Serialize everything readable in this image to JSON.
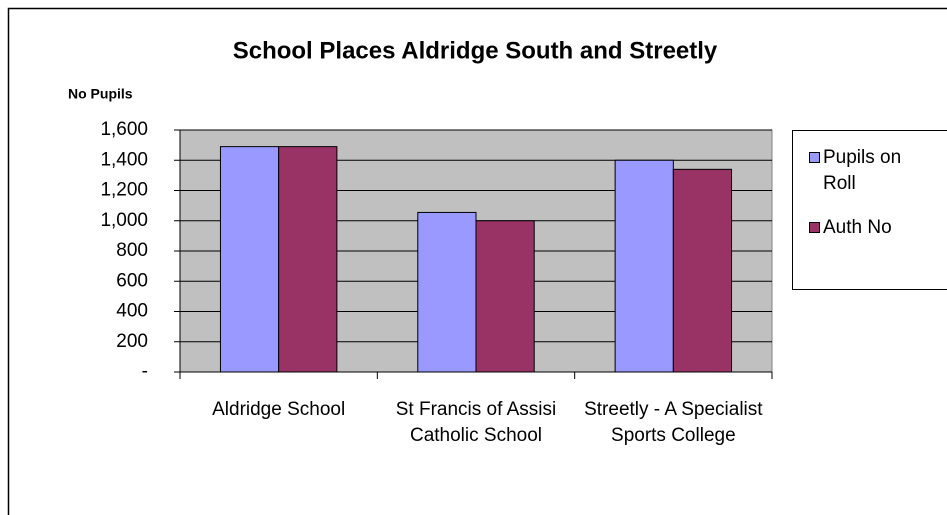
{
  "chart_data": {
    "type": "bar",
    "title": "School Places Aldridge South and Streetly",
    "y_label": "No Pupils",
    "categories": [
      "Aldridge School",
      "St Francis of Assisi Catholic School",
      "Streetly - A Specialist Sports College"
    ],
    "series": [
      {
        "name": "Pupils on Roll",
        "color": "#9999ff",
        "values": [
          1490,
          1055,
          1400
        ]
      },
      {
        "name": "Auth No",
        "color": "#993366",
        "values": [
          1490,
          1000,
          1340
        ]
      }
    ],
    "ylim": [
      0,
      1600
    ],
    "yticks": [
      {
        "value": 0,
        "label": "-"
      },
      200,
      400,
      600,
      800,
      {
        "value": 1000,
        "label": "1,000"
      },
      {
        "value": 1200,
        "label": "1,200"
      },
      {
        "value": 1400,
        "label": "1,400"
      },
      {
        "value": 1600,
        "label": "1,600"
      }
    ],
    "grid": true,
    "legend": "right",
    "plot_background": "#c0c0c0"
  }
}
